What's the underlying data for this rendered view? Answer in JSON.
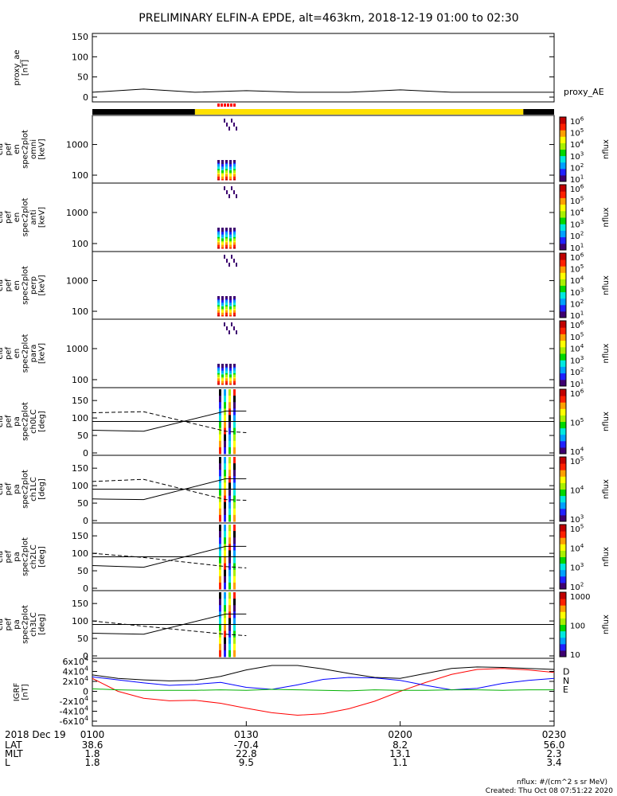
{
  "title": "PRELIMINARY ELFIN-A EPDE, alt=463km, 2018-12-19 01:00 to 02:30",
  "footer": {
    "units": "nflux: #/(cm^2 s sr MeV)",
    "created": "Created: Thu Oct 08 07:51:22 2020"
  },
  "bottom_axis": {
    "row_labels": [
      "2018 Dec 19",
      "LAT",
      "MLT",
      "L"
    ],
    "columns": [
      {
        "time": "0100",
        "lat": "38.6",
        "mlt": "1.8",
        "l": "1.8"
      },
      {
        "time": "0130",
        "lat": "-70.4",
        "mlt": "22.8",
        "l": "9.5"
      },
      {
        "time": "0200",
        "lat": "8.2",
        "mlt": "13.1",
        "l": "1.1"
      },
      {
        "time": "0230",
        "lat": "56.0",
        "mlt": "2.3",
        "l": "3.4"
      }
    ]
  },
  "colors": {
    "spectrum": [
      "#000000",
      "#3d0070",
      "#2020ff",
      "#00a0ff",
      "#00e8e0",
      "#00d800",
      "#a8f000",
      "#ffff00",
      "#ffa000",
      "#ff2000",
      "#c00000"
    ],
    "state_bar_night": "#000000",
    "state_bar_day": "#ffe000",
    "science_marks": "#ff0000",
    "igrf_n": "#0000ff",
    "igrf_e": "#00b000",
    "igrf_d": "#ff0000",
    "igrf_total": "#000000"
  },
  "chart_data": [
    {
      "type": "line",
      "panel": "proxy_ae",
      "ylabel": [
        "proxy_ae",
        "[nT]"
      ],
      "ylim": [
        0,
        150
      ],
      "yticks": [
        "0",
        "50",
        "100",
        "150"
      ],
      "legend": [
        "proxy_AE"
      ],
      "x_minutes": [
        0,
        10,
        20,
        30,
        40,
        50,
        60,
        70,
        80,
        90
      ],
      "values": [
        12,
        20,
        12,
        16,
        12,
        12,
        18,
        12,
        12,
        12
      ]
    },
    {
      "type": "heatmap",
      "panel": "omni",
      "ylabel": [
        "ela",
        "pef",
        "en",
        "spec2plot",
        "omni",
        "[keV]"
      ],
      "yscale": "log",
      "ytick_labels": [
        "100",
        "1000"
      ],
      "colorbar": {
        "label": "nflux",
        "ticks": [
          "10^1",
          "10^2",
          "10^3",
          "10^4",
          "10^5",
          "10^6"
        ]
      }
    },
    {
      "type": "heatmap",
      "panel": "anti",
      "ylabel": [
        "ela",
        "pef",
        "en",
        "spec2plot",
        "anti",
        "[keV]"
      ],
      "yscale": "log",
      "ytick_labels": [
        "100",
        "1000"
      ],
      "colorbar": {
        "label": "nflux",
        "ticks": [
          "10^1",
          "10^2",
          "10^3",
          "10^4",
          "10^5",
          "10^6"
        ]
      }
    },
    {
      "type": "heatmap",
      "panel": "perp",
      "ylabel": [
        "ela",
        "pef",
        "en",
        "spec2plot",
        "perp",
        "[keV]"
      ],
      "yscale": "log",
      "ytick_labels": [
        "100",
        "1000"
      ],
      "colorbar": {
        "label": "nflux",
        "ticks": [
          "10^1",
          "10^2",
          "10^3",
          "10^4",
          "10^5",
          "10^6"
        ]
      }
    },
    {
      "type": "heatmap",
      "panel": "para",
      "ylabel": [
        "ela",
        "pef",
        "en",
        "spec2plot",
        "para",
        "[keV]"
      ],
      "yscale": "log",
      "ytick_labels": [
        "100",
        "1000"
      ],
      "colorbar": {
        "label": "nflux",
        "ticks": [
          "10^1",
          "10^2",
          "10^3",
          "10^4",
          "10^5",
          "10^6"
        ]
      }
    },
    {
      "type": "heatmap",
      "panel": "ch0LC",
      "ylabel": [
        "ela",
        "pef",
        "pa",
        "spec2plot",
        "ch0LC",
        "[deg]"
      ],
      "ylim": [
        0,
        180
      ],
      "yticks": [
        "0",
        "50",
        "100",
        "150"
      ],
      "loss_cone": {
        "x_minutes": [
          0,
          10,
          26,
          30
        ],
        "values": [
          65,
          62,
          120,
          120
        ]
      },
      "anti_loss_cone": {
        "x_minutes": [
          0,
          10,
          26,
          30
        ],
        "values": [
          115,
          118,
          62,
          58
        ]
      },
      "colorbar": {
        "label": "nflux",
        "ticks": [
          "10^4",
          "10^5",
          "10^6"
        ]
      }
    },
    {
      "type": "heatmap",
      "panel": "ch1LC",
      "ylabel": [
        "ela",
        "pef",
        "pa",
        "spec2plot",
        "ch1LC",
        "[deg]"
      ],
      "ylim": [
        0,
        180
      ],
      "yticks": [
        "0",
        "50",
        "100",
        "150"
      ],
      "loss_cone": {
        "x_minutes": [
          0,
          10,
          26,
          30
        ],
        "values": [
          62,
          60,
          120,
          120
        ]
      },
      "anti_loss_cone": {
        "x_minutes": [
          0,
          10,
          26,
          30
        ],
        "values": [
          112,
          118,
          60,
          58
        ]
      },
      "colorbar": {
        "label": "nflux",
        "ticks": [
          "10^3",
          "10^4",
          "10^5"
        ]
      }
    },
    {
      "type": "heatmap",
      "panel": "ch2LC",
      "ylabel": [
        "ela",
        "pef",
        "pa",
        "spec2plot",
        "ch2LC",
        "[deg]"
      ],
      "ylim": [
        0,
        180
      ],
      "yticks": [
        "0",
        "50",
        "100",
        "150"
      ],
      "loss_cone": {
        "x_minutes": [
          0,
          10,
          26,
          30
        ],
        "values": [
          65,
          60,
          120,
          120
        ]
      },
      "anti_loss_cone": {
        "x_minutes": [
          0,
          10,
          26,
          30
        ],
        "values": [
          100,
          88,
          62,
          58
        ]
      },
      "colorbar": {
        "label": "nflux",
        "ticks": [
          "10^2",
          "10^3",
          "10^4",
          "10^5"
        ]
      }
    },
    {
      "type": "heatmap",
      "panel": "ch3LC",
      "ylabel": [
        "ela",
        "pef",
        "pa",
        "spec2plot",
        "ch3LC",
        "[deg]"
      ],
      "ylim": [
        0,
        180
      ],
      "yticks": [
        "0",
        "50",
        "100",
        "150"
      ],
      "loss_cone": {
        "x_minutes": [
          0,
          10,
          26,
          30
        ],
        "values": [
          65,
          62,
          120,
          120
        ]
      },
      "anti_loss_cone": {
        "x_minutes": [
          0,
          10,
          26,
          30
        ],
        "values": [
          100,
          85,
          62,
          58
        ]
      },
      "colorbar": {
        "label": "nflux",
        "ticks": [
          "10",
          "100",
          "1000"
        ]
      }
    },
    {
      "type": "line",
      "panel": "IGRF",
      "ylabel": [
        "IGRF",
        "[nT]"
      ],
      "ylim": [
        -60000,
        60000
      ],
      "ytick_labels": [
        "-6x10^4",
        "-4x10^4",
        "-2x10^4",
        "0",
        "2x10^4",
        "4x10^4",
        "6x10^4"
      ],
      "x_minutes": [
        0,
        5,
        10,
        15,
        20,
        25,
        30,
        35,
        40,
        45,
        50,
        55,
        60,
        65,
        70,
        75,
        80,
        85,
        90
      ],
      "series": [
        {
          "name": "D",
          "values": [
            26000,
            0,
            -14000,
            -19000,
            -18000,
            -24000,
            -34000,
            -43000,
            -48000,
            -45000,
            -35000,
            -20000,
            0,
            18000,
            34000,
            44000,
            46000,
            43000,
            38000
          ]
        },
        {
          "name": "N",
          "values": [
            29000,
            23000,
            17000,
            12000,
            14000,
            18000,
            8000,
            4000,
            13000,
            24000,
            28000,
            27000,
            22000,
            12000,
            3000,
            6000,
            16000,
            22000,
            26000
          ]
        },
        {
          "name": "E",
          "values": [
            5000,
            3000,
            2000,
            2000,
            2000,
            3000,
            2000,
            4000,
            3000,
            2000,
            1000,
            3000,
            2000,
            2000,
            3000,
            3000,
            2000,
            3000,
            3000
          ]
        },
        {
          "values": [
            33000,
            26000,
            23000,
            21000,
            22000,
            30000,
            43000,
            52000,
            52000,
            45000,
            36000,
            28000,
            26000,
            36000,
            46000,
            49000,
            48000,
            46000,
            44000
          ]
        }
      ]
    }
  ]
}
